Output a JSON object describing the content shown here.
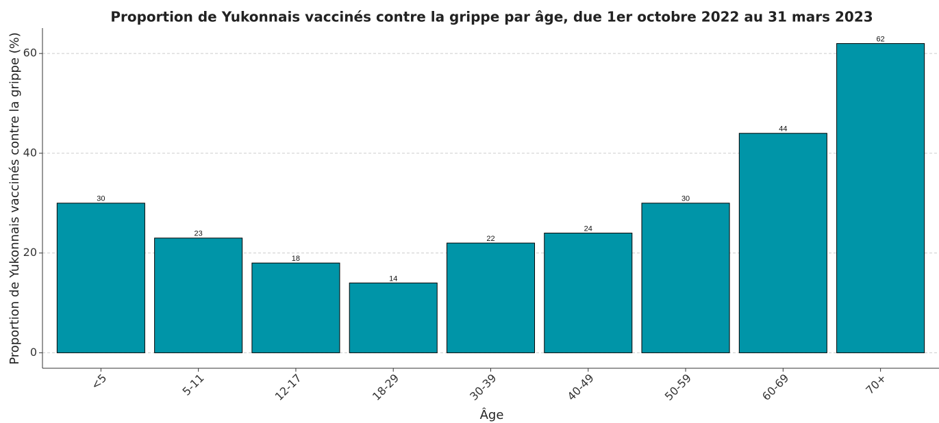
{
  "chart_data": {
    "type": "bar",
    "title": "Proportion de Yukonnais vaccinés contre la grippe par âge, due 1er octobre 2022 au 31 mars 2023",
    "x_label": "Âge",
    "y_label": "Proportion de Yukonnais vaccinés contre la grippe (%)",
    "categories": [
      "<5",
      "5-11",
      "12-17",
      "18-29",
      "30-39",
      "40-49",
      "50-59",
      "60-69",
      "70+"
    ],
    "values": [
      30,
      23,
      18,
      14,
      22,
      24,
      30,
      44,
      62
    ],
    "color": "#0095a8",
    "ylim": [
      -3.1,
      65.1
    ],
    "yticks": [
      0,
      20,
      40,
      60
    ],
    "grid": true
  }
}
